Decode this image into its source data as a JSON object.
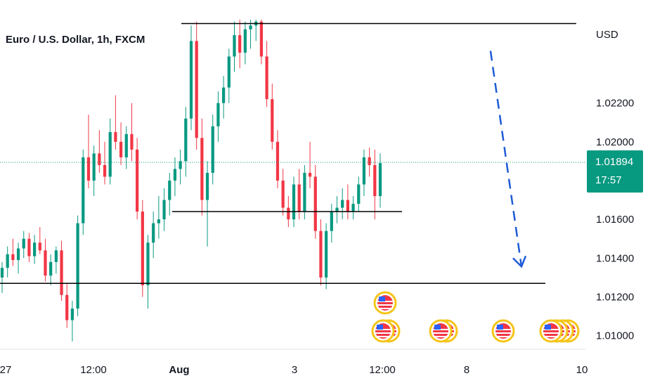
{
  "header": {
    "symbol_title": "Euro / U.S. Dollar, 1h, FXCM",
    "currency": "USD"
  },
  "price_badge": {
    "price": "1.01894",
    "countdown": "17:57"
  },
  "colors": {
    "up": "#089981",
    "down": "#f23645",
    "price_line": "#089981",
    "arrow": "#1e5bd6",
    "level_line": "#000000",
    "axis_text": "#131722"
  },
  "chart_data": {
    "type": "candlestick",
    "title": "Euro / U.S. Dollar, 1h, FXCM",
    "y_unit": "USD",
    "ylim": [
      1.0093,
      1.0263
    ],
    "y_ticks": [
      "1.02200",
      "1.02000",
      "1.01600",
      "1.01400",
      "1.01200",
      "1.01000"
    ],
    "x_ticks": [
      "27",
      "12:00",
      "Aug",
      "3",
      "12:00",
      "8",
      "10"
    ],
    "last_price": 1.01894,
    "horizontal_levels": [
      {
        "price": 1.0261,
        "from": "1 Aug late session",
        "to": "right edge"
      },
      {
        "price": 1.0164,
        "from": "1 Aug",
        "to": "3 Aug afternoon"
      },
      {
        "price": 1.0127,
        "from": "27 Jul",
        "to": "projection area"
      }
    ],
    "projection_arrow": {
      "style": "dashed",
      "direction": "down",
      "from_price": 1.0236,
      "to_price": 1.014
    },
    "event_markers": [
      {
        "flag": "US",
        "count": 2,
        "stacked_top": true
      },
      {
        "flag": "US",
        "count": 2
      },
      {
        "flag": "US",
        "count": 1
      },
      {
        "flag": "US",
        "count": 4
      }
    ],
    "candles": [
      [
        1.013,
        1.0138,
        1.0122,
        1.0135
      ],
      [
        1.0135,
        1.0146,
        1.013,
        1.0142
      ],
      [
        1.0142,
        1.015,
        1.0136,
        1.0139
      ],
      [
        1.0139,
        1.0148,
        1.0132,
        1.0145
      ],
      [
        1.0145,
        1.0154,
        1.014,
        1.015
      ],
      [
        1.015,
        1.0153,
        1.0138,
        1.0141
      ],
      [
        1.0141,
        1.0152,
        1.0137,
        1.0148
      ],
      [
        1.0148,
        1.0156,
        1.0142,
        1.0144
      ],
      [
        1.0144,
        1.015,
        1.0128,
        1.0131
      ],
      [
        1.0131,
        1.0142,
        1.0126,
        1.0138
      ],
      [
        1.0138,
        1.0146,
        1.0132,
        1.0144
      ],
      [
        1.0144,
        1.0149,
        1.0118,
        1.0121
      ],
      [
        1.0121,
        1.0127,
        1.0104,
        1.0108
      ],
      [
        1.0108,
        1.0118,
        1.0097,
        1.0114
      ],
      [
        1.0114,
        1.0162,
        1.011,
        1.0158
      ],
      [
        1.0158,
        1.0196,
        1.0152,
        1.0192
      ],
      [
        1.0192,
        1.0214,
        1.0176,
        1.018
      ],
      [
        1.018,
        1.0198,
        1.0172,
        1.0194
      ],
      [
        1.0194,
        1.0206,
        1.0184,
        1.0188
      ],
      [
        1.0188,
        1.02,
        1.0178,
        1.0182
      ],
      [
        1.0182,
        1.0212,
        1.0178,
        1.0205
      ],
      [
        1.0205,
        1.0224,
        1.0196,
        1.02
      ],
      [
        1.02,
        1.021,
        1.0188,
        1.0192
      ],
      [
        1.0192,
        1.0208,
        1.0186,
        1.0204
      ],
      [
        1.0204,
        1.022,
        1.019,
        1.0196
      ],
      [
        1.0196,
        1.0202,
        1.016,
        1.0164
      ],
      [
        1.0164,
        1.017,
        1.012,
        1.0126
      ],
      [
        1.0126,
        1.0152,
        1.0114,
        1.0148
      ],
      [
        1.0148,
        1.0164,
        1.014,
        1.0158
      ],
      [
        1.0158,
        1.0172,
        1.015,
        1.016
      ],
      [
        1.016,
        1.0176,
        1.0154,
        1.017
      ],
      [
        1.017,
        1.0184,
        1.0162,
        1.018
      ],
      [
        1.018,
        1.0192,
        1.0172,
        1.0186
      ],
      [
        1.0186,
        1.0196,
        1.0178,
        1.019
      ],
      [
        1.019,
        1.0218,
        1.0182,
        1.0212
      ],
      [
        1.0212,
        1.026,
        1.0206,
        1.0252
      ],
      [
        1.0252,
        1.0262,
        1.0196,
        1.0202
      ],
      [
        1.0202,
        1.0212,
        1.0162,
        1.017
      ],
      [
        1.017,
        1.019,
        1.0146,
        1.0184
      ],
      [
        1.0184,
        1.0214,
        1.0178,
        1.0208
      ],
      [
        1.0208,
        1.0226,
        1.02,
        1.022
      ],
      [
        1.022,
        1.0234,
        1.0212,
        1.0228
      ],
      [
        1.0228,
        1.0248,
        1.022,
        1.0244
      ],
      [
        1.0244,
        1.0262,
        1.0236,
        1.0255
      ],
      [
        1.0255,
        1.0263,
        1.0238,
        1.0246
      ],
      [
        1.0246,
        1.0262,
        1.024,
        1.0258
      ],
      [
        1.0258,
        1.0263,
        1.0248,
        1.026
      ],
      [
        1.026,
        1.0263,
        1.0252,
        1.0262
      ],
      [
        1.0262,
        1.0263,
        1.024,
        1.0244
      ],
      [
        1.0244,
        1.0252,
        1.0218,
        1.0222
      ],
      [
        1.0222,
        1.023,
        1.0196,
        1.02
      ],
      [
        1.02,
        1.0206,
        1.0176,
        1.018
      ],
      [
        1.018,
        1.0186,
        1.0162,
        1.0166
      ],
      [
        1.0166,
        1.0172,
        1.0156,
        1.016
      ],
      [
        1.016,
        1.0182,
        1.0156,
        1.0178
      ],
      [
        1.0178,
        1.0186,
        1.016,
        1.0164
      ],
      [
        1.0164,
        1.0188,
        1.016,
        1.0184
      ],
      [
        1.0184,
        1.02,
        1.0176,
        1.0182
      ],
      [
        1.0182,
        1.0188,
        1.015,
        1.0154
      ],
      [
        1.0154,
        1.016,
        1.0126,
        1.013
      ],
      [
        1.013,
        1.0158,
        1.0124,
        1.0154
      ],
      [
        1.0154,
        1.0168,
        1.0148,
        1.0164
      ],
      [
        1.0164,
        1.0172,
        1.0158,
        1.0166
      ],
      [
        1.0166,
        1.0176,
        1.016,
        1.017
      ],
      [
        1.017,
        1.0178,
        1.016,
        1.0164
      ],
      [
        1.0164,
        1.0172,
        1.016,
        1.0168
      ],
      [
        1.0168,
        1.0182,
        1.0164,
        1.0178
      ],
      [
        1.0178,
        1.0196,
        1.0172,
        1.0192
      ],
      [
        1.0192,
        1.0197,
        1.0182,
        1.0188
      ],
      [
        1.0188,
        1.0196,
        1.016,
        1.0172
      ],
      [
        1.0172,
        1.0194,
        1.0166,
        1.0189
      ]
    ]
  }
}
